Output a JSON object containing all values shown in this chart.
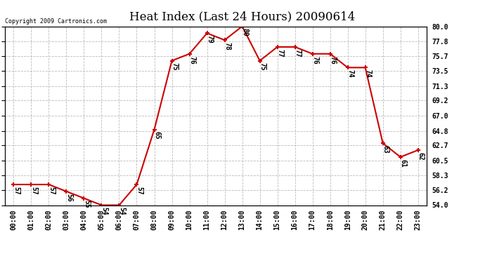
{
  "title": "Heat Index (Last 24 Hours) 20090614",
  "copyright": "Copyright 2009 Cartronics.com",
  "hours": [
    0,
    1,
    2,
    3,
    4,
    5,
    6,
    7,
    8,
    9,
    10,
    11,
    12,
    13,
    14,
    15,
    16,
    17,
    18,
    19,
    20,
    21,
    22,
    23
  ],
  "hour_labels": [
    "00:00",
    "01:00",
    "02:00",
    "03:00",
    "04:00",
    "05:00",
    "06:00",
    "07:00",
    "08:00",
    "09:00",
    "10:00",
    "11:00",
    "12:00",
    "13:00",
    "14:00",
    "15:00",
    "16:00",
    "17:00",
    "18:00",
    "19:00",
    "20:00",
    "21:00",
    "22:00",
    "23:00"
  ],
  "values": [
    57,
    57,
    57,
    56,
    55,
    54,
    54,
    57,
    65,
    75,
    76,
    79,
    78,
    80,
    75,
    77,
    77,
    76,
    76,
    74,
    74,
    63,
    61,
    62
  ],
  "ylim": [
    54.0,
    80.0
  ],
  "yticks": [
    54.0,
    56.2,
    58.3,
    60.5,
    62.7,
    64.8,
    67.0,
    69.2,
    71.3,
    73.5,
    75.7,
    77.8,
    80.0
  ],
  "ytick_labels": [
    "54.0",
    "56.2",
    "58.3",
    "60.5",
    "62.7",
    "64.8",
    "67.0",
    "69.2",
    "71.3",
    "73.5",
    "75.7",
    "77.8",
    "80.0"
  ],
  "line_color": "#cc0000",
  "marker_color": "#cc0000",
  "bg_color": "#ffffff",
  "grid_color": "#bbbbbb",
  "title_fontsize": 12,
  "tick_fontsize": 7,
  "annotation_fontsize": 7,
  "copyright_fontsize": 6
}
